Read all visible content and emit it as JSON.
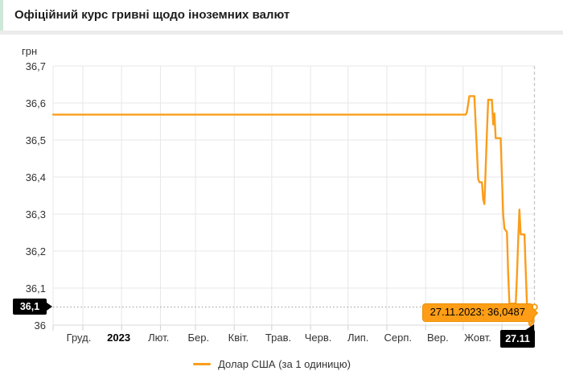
{
  "header": {
    "title": "Офіційний курс гривні щодо іноземних валют"
  },
  "chart": {
    "y_axis_title": "грн",
    "y_ticks": [
      {
        "label": "36,7",
        "value": 36.7
      },
      {
        "label": "36,6",
        "value": 36.6
      },
      {
        "label": "36,5",
        "value": 36.5
      },
      {
        "label": "36,4",
        "value": 36.4
      },
      {
        "label": "36,3",
        "value": 36.3
      },
      {
        "label": "36,2",
        "value": 36.2
      },
      {
        "label": "36,1",
        "value": 36.1
      },
      {
        "label": "36",
        "value": 36.0
      }
    ],
    "x_labels": [
      {
        "label": "Груд.",
        "bold": false
      },
      {
        "label": "2023",
        "bold": true
      },
      {
        "label": "Лют.",
        "bold": false
      },
      {
        "label": "Бер.",
        "bold": false
      },
      {
        "label": "Квіт.",
        "bold": false
      },
      {
        "label": "Трав.",
        "bold": false
      },
      {
        "label": "Черв.",
        "bold": false
      },
      {
        "label": "Лип.",
        "bold": false
      },
      {
        "label": "Серп.",
        "bold": false
      },
      {
        "label": "Вер.",
        "bold": false
      },
      {
        "label": "Жовт.",
        "bold": false
      }
    ],
    "selected_y_label": "36,1",
    "selected_x_label": "27.11",
    "tooltip_text": "27.11.2023: 36,0487",
    "legend_label": "Долар США (за 1 одиницю)",
    "colors": {
      "line": "#fa9d1c",
      "tooltip_bg": "#ff9e16",
      "tooltip_border": "#ea8f00",
      "grid": "#e7e7e7",
      "axis": "#d9d9d9",
      "tick": "#cfcfcf",
      "crosshair_dash": "#c6c6c6",
      "crosshair_dot": "#969696",
      "accent_green": "#cde8d8"
    }
  },
  "chart_data": {
    "type": "line",
    "title": "Офіційний курс гривні щодо іноземних валют",
    "ylabel": "грн",
    "ylim": [
      36.0,
      36.7
    ],
    "x_range": [
      "2022-11-07",
      "2023-11-27"
    ],
    "grid": true,
    "legend_position": "bottom-center",
    "series": [
      {
        "name": "Долар США (за 1 одиницю)",
        "points": [
          [
            "2022-11-07",
            36.5686
          ],
          [
            "2023-10-03",
            36.5686
          ],
          [
            "2023-10-04",
            36.575
          ],
          [
            "2023-10-06",
            36.6186
          ],
          [
            "2023-10-10",
            36.6186
          ],
          [
            "2023-10-12",
            36.47
          ],
          [
            "2023-10-13",
            36.395
          ],
          [
            "2023-10-14",
            36.386
          ],
          [
            "2023-10-16",
            36.386
          ],
          [
            "2023-10-17",
            36.34
          ],
          [
            "2023-10-18",
            36.327
          ],
          [
            "2023-10-19",
            36.42
          ],
          [
            "2023-10-20",
            36.52
          ],
          [
            "2023-10-21",
            36.6086
          ],
          [
            "2023-10-24",
            36.6086
          ],
          [
            "2023-10-25",
            36.542
          ],
          [
            "2023-10-26",
            36.572
          ],
          [
            "2023-10-27",
            36.505
          ],
          [
            "2023-10-31",
            36.505
          ],
          [
            "2023-11-01",
            36.4
          ],
          [
            "2023-11-02",
            36.3
          ],
          [
            "2023-11-03",
            36.26
          ],
          [
            "2023-11-05",
            36.252
          ],
          [
            "2023-11-06",
            36.14
          ],
          [
            "2023-11-07",
            36.058
          ],
          [
            "2023-11-12",
            36.058
          ],
          [
            "2023-11-13",
            36.13
          ],
          [
            "2023-11-14",
            36.23
          ],
          [
            "2023-11-15",
            36.312
          ],
          [
            "2023-11-16",
            36.245
          ],
          [
            "2023-11-19",
            36.245
          ],
          [
            "2023-11-20",
            36.15
          ],
          [
            "2023-11-21",
            36.056
          ],
          [
            "2023-11-22",
            36.03
          ],
          [
            "2023-11-23",
            36.001
          ],
          [
            "2023-11-24",
            35.998
          ],
          [
            "2023-11-25",
            36.012
          ],
          [
            "2023-11-26",
            36.004
          ],
          [
            "2023-11-27",
            36.0487
          ]
        ]
      }
    ],
    "selected_point": {
      "date": "27.11.2023",
      "value": 36.0487,
      "display": "27.11.2023: 36,0487"
    }
  }
}
